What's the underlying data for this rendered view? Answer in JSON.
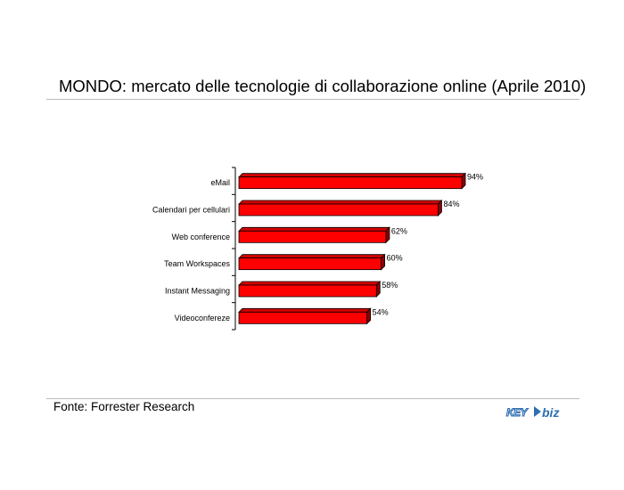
{
  "chart_data": {
    "type": "bar",
    "orientation": "horizontal",
    "title": "MONDO: mercato delle tecnologie di collaborazione online (Aprile 2010)",
    "categories": [
      "eMail",
      "Calendari per cellulari",
      "Web conference",
      "Team Workspaces",
      "Instant Messaging",
      "Videoconfereze"
    ],
    "values": [
      94,
      84,
      62,
      60,
      58,
      54
    ],
    "value_labels": [
      "94%",
      "84%",
      "62%",
      "60%",
      "58%",
      "54%"
    ],
    "unit": "%",
    "xlim": [
      0,
      100
    ],
    "grid": false,
    "bar_color": "#ff0000",
    "bar_3d": true
  },
  "footer": {
    "source": "Fonte: Forrester Research",
    "logo_text": "KEY4biz"
  }
}
